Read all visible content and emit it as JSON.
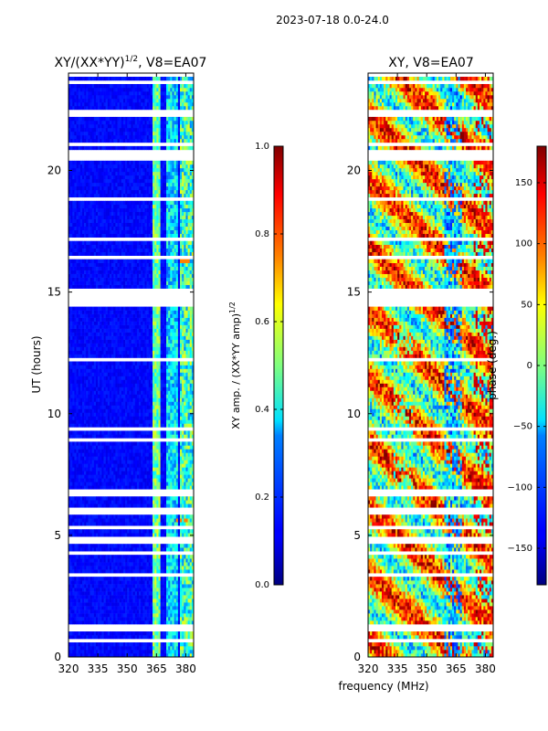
{
  "chart_data": [
    {
      "type": "heatmap",
      "suptitle": "2023-07-18 0.0-24.0",
      "title": "XY/(XX*YY)^1/2, V8=EA07",
      "title_main": "XY/(XX*YY)",
      "title_exp": "1/2",
      "title_suffix": ", V8=EA07",
      "xlabel": "",
      "ylabel": "UT (hours)",
      "xlim": [
        320,
        384
      ],
      "ylim": [
        0,
        24
      ],
      "xticks": [
        320,
        335,
        350,
        365,
        380
      ],
      "xtick_labels": [
        "320",
        "335",
        "350",
        "365",
        "380"
      ],
      "yticks": [
        0,
        5,
        10,
        15,
        20
      ],
      "ytick_labels": [
        "0",
        "5",
        "10",
        "15",
        "20"
      ],
      "colorbar": {
        "label": "XY amp. / (XX*YY amp)^1/2",
        "label_main": "XY amp. / (XX*YY amp)",
        "label_exp": "1/2",
        "range": [
          0.0,
          1.0
        ],
        "ticks": [
          0.0,
          0.2,
          0.4,
          0.6,
          0.8,
          1.0
        ],
        "tick_labels": [
          "0.0",
          "0.2",
          "0.4",
          "0.6",
          "0.8",
          "1.0"
        ],
        "colormap": "jet"
      }
    },
    {
      "type": "heatmap",
      "title": "XY, V8=EA07",
      "xlabel": "frequency (MHz)",
      "ylabel": "",
      "xlim": [
        320,
        384
      ],
      "ylim": [
        0,
        24
      ],
      "xticks": [
        320,
        335,
        350,
        365,
        380
      ],
      "xtick_labels": [
        "320",
        "335",
        "350",
        "365",
        "380"
      ],
      "yticks": [
        0,
        5,
        10,
        15,
        20
      ],
      "ytick_labels": [
        "0",
        "5",
        "10",
        "15",
        "20"
      ],
      "colorbar": {
        "label": "phase (deg.)",
        "range": [
          -180,
          180
        ],
        "ticks": [
          -150,
          -100,
          -50,
          0,
          50,
          100,
          150
        ],
        "tick_labels": [
          "−150",
          "−100",
          "−50",
          "0",
          "50",
          "100",
          "150"
        ],
        "colormap": "jet"
      }
    }
  ]
}
